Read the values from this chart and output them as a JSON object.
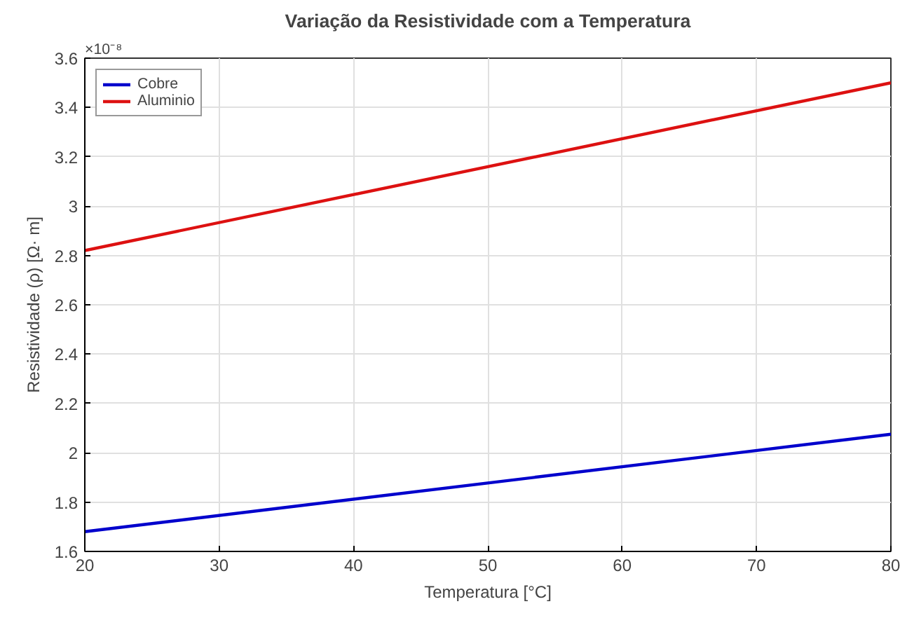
{
  "chart_data": {
    "type": "line",
    "title": "Variação da Resistividade com a Temperatura",
    "xlabel": "Temperatura [°C]",
    "ylabel": "Resistividade (ρ) [Ω· m]",
    "annotations": [
      "×10⁻⁸"
    ],
    "x": [
      20,
      80
    ],
    "series": [
      {
        "name": "Cobre",
        "color": "#0000cc",
        "values": [
          1.68,
          2.075
        ]
      },
      {
        "name": "Aluminio",
        "color": "#dd1111",
        "values": [
          2.82,
          3.5
        ]
      }
    ],
    "xlim": [
      20,
      80
    ],
    "ylim": [
      1.6,
      3.6
    ],
    "xticks": [
      20,
      30,
      40,
      50,
      60,
      70,
      80
    ],
    "yticks": [
      1.6,
      1.8,
      2,
      2.2,
      2.4,
      2.6,
      2.8,
      3,
      3.2,
      3.4,
      3.6
    ],
    "grid": true,
    "legend": "top left",
    "line_style": "solid"
  }
}
